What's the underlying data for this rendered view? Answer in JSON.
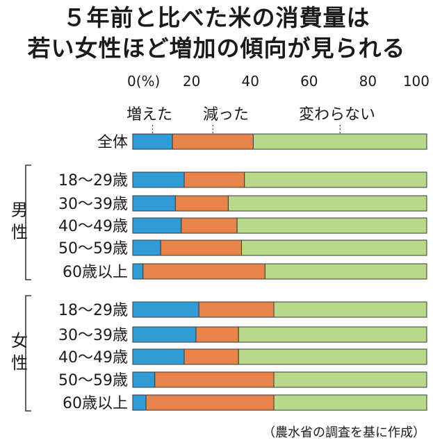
{
  "title_line1": "５年前と比べた米の消費量は",
  "title_line2": "若い女性ほど増加の傾向が見られる",
  "source": "（農水省の調査を基に作成）",
  "colors": {
    "increased": "#2f9bd7",
    "decreased": "#e8834a",
    "unchanged": "#b8d98a",
    "border": "#3a3a3a"
  },
  "chart_data": {
    "type": "bar",
    "orientation": "horizontal",
    "stacked": true,
    "unit_label": "(%)",
    "xlim": [
      0,
      100
    ],
    "ticks": [
      0,
      20,
      40,
      60,
      80,
      100
    ],
    "series_names": [
      "増えた",
      "減った",
      "変わらない"
    ],
    "groups": [
      {
        "label": "",
        "rows": [
          {
            "label": "全体",
            "values": [
              13.5,
              27.5,
              59.0
            ]
          }
        ]
      },
      {
        "label": "男性",
        "rows": [
          {
            "label": "18〜29歳",
            "values": [
              17.5,
              20.5,
              62.0
            ]
          },
          {
            "label": "30〜39歳",
            "values": [
              14.5,
              18.0,
              67.5
            ]
          },
          {
            "label": "40〜49歳",
            "values": [
              16.5,
              19.0,
              64.5
            ]
          },
          {
            "label": "50〜59歳",
            "values": [
              9.5,
              27.5,
              63.0
            ]
          },
          {
            "label": "60歳以上",
            "values": [
              3.5,
              41.5,
              55.0
            ]
          }
        ]
      },
      {
        "label": "女性",
        "rows": [
          {
            "label": "18〜29歳",
            "values": [
              22.5,
              25.5,
              52.0
            ]
          },
          {
            "label": "30〜39歳",
            "values": [
              21.5,
              14.5,
              64.0
            ]
          },
          {
            "label": "40〜49歳",
            "values": [
              17.5,
              18.5,
              64.0
            ]
          },
          {
            "label": "50〜59歳",
            "values": [
              7.5,
              40.5,
              52.0
            ]
          },
          {
            "label": "60歳以上",
            "values": [
              4.5,
              43.5,
              52.0
            ]
          }
        ]
      }
    ]
  }
}
